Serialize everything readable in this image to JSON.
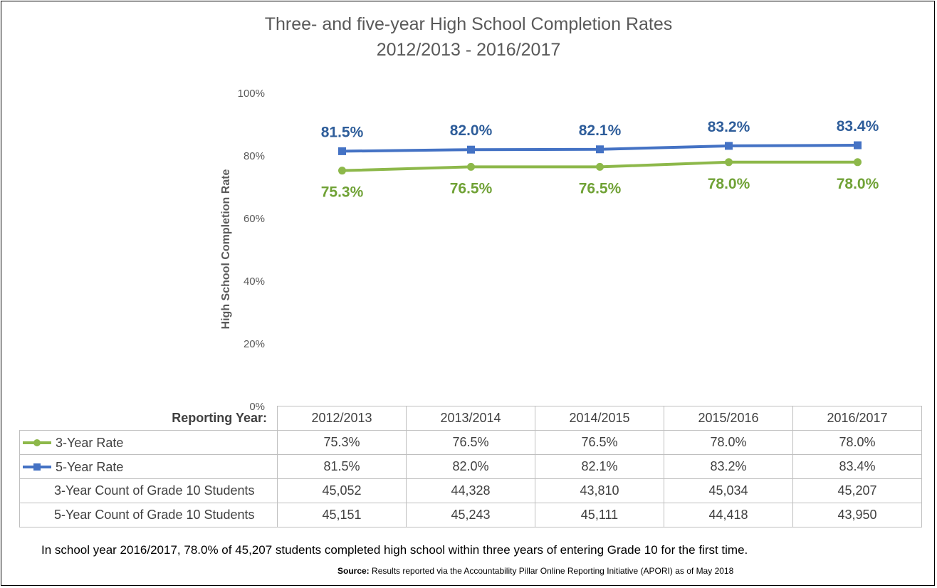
{
  "chart_data": {
    "type": "line",
    "title": "Three- and five-year High School Completion Rates",
    "subtitle": "2012/2013 - 2016/2017",
    "ylabel": "High School Completion Rate",
    "xlabel": "Reporting Year:",
    "ylim": [
      0,
      100
    ],
    "yticks": [
      "0%",
      "20%",
      "40%",
      "60%",
      "80%",
      "100%"
    ],
    "ytick_values": [
      0,
      20,
      40,
      60,
      80,
      100
    ],
    "categories": [
      "2012/2013",
      "2013/2014",
      "2014/2015",
      "2015/2016",
      "2016/2017"
    ],
    "series": [
      {
        "name": "5-Year Rate",
        "color": "#4472C4",
        "label_color": "#2E5D9A",
        "marker": "square",
        "values": [
          81.5,
          82.0,
          82.1,
          83.2,
          83.4
        ],
        "labels": [
          "81.5%",
          "82.0%",
          "82.1%",
          "83.2%",
          "83.4%"
        ]
      },
      {
        "name": "3-Year Rate",
        "color": "#8DB84A",
        "label_color": "#70A236",
        "marker": "circle",
        "values": [
          75.3,
          76.5,
          76.5,
          78.0,
          78.0
        ],
        "labels": [
          "75.3%",
          "76.5%",
          "76.5%",
          "78.0%",
          "78.0%"
        ]
      }
    ],
    "table": {
      "header_label": "Reporting Year:",
      "rows": [
        {
          "name": "3-Year Rate",
          "legend": "circle",
          "color": "#8DB84A",
          "cells": [
            "75.3%",
            "76.5%",
            "76.5%",
            "78.0%",
            "78.0%"
          ]
        },
        {
          "name": "5-Year Rate",
          "legend": "square",
          "color": "#4472C4",
          "cells": [
            "81.5%",
            "82.0%",
            "82.1%",
            "83.2%",
            "83.4%"
          ]
        },
        {
          "name": "3-Year Count of Grade 10 Students",
          "legend": "",
          "color": "",
          "cells": [
            "45,052",
            "44,328",
            "43,810",
            "45,034",
            "45,207"
          ]
        },
        {
          "name": "5-Year Count of Grade 10 Students",
          "legend": "",
          "color": "",
          "cells": [
            "45,151",
            "45,243",
            "45,111",
            "44,418",
            "43,950"
          ]
        }
      ]
    }
  },
  "note": "In school year 2016/2017, 78.0% of 45,207 students completed high school within three years of entering Grade 10 for the first time.",
  "source": {
    "label": "Source:",
    "text": " Results reported via the Accountability Pillar Online Reporting Initiative (APORI) as of May 2018"
  }
}
